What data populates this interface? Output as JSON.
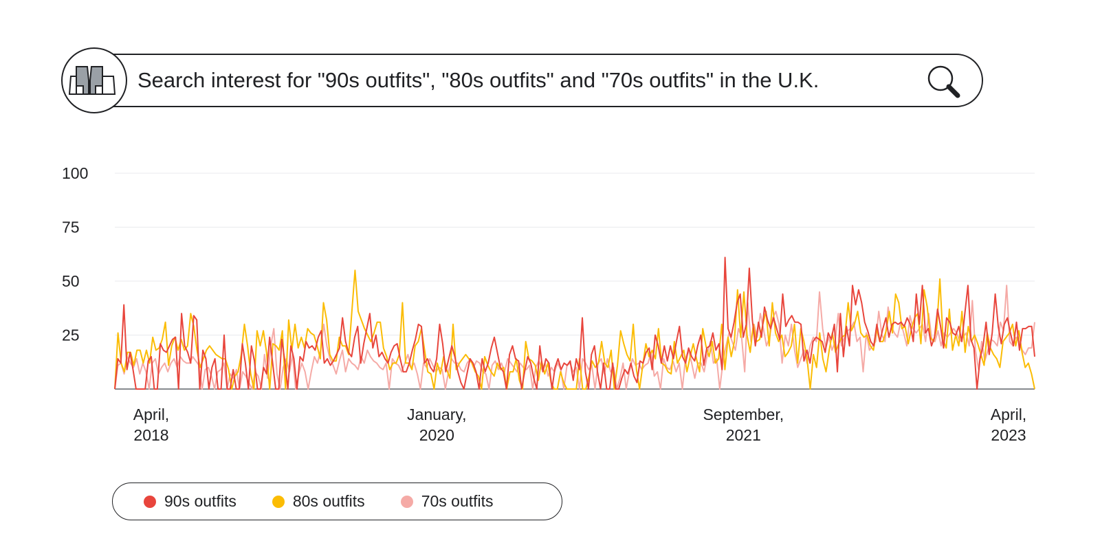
{
  "header": {
    "title": "Search interest for \"90s outfits\", \"80s outfits\" and \"70s outfits\" in the U.K.",
    "logo_icon": "boots-icon",
    "search_icon": "magnifier-icon"
  },
  "colors": {
    "s90": "#e8453c",
    "s80": "#fbbc04",
    "s70": "#f5aaa6",
    "grid": "#e8eaed",
    "axis": "#5f6368"
  },
  "chart_data": {
    "type": "line",
    "title": "Search interest for \"90s outfits\", \"80s outfits\" and \"70s outfits\" in the U.K.",
    "x_start": "2018-04",
    "x_end": "2023-04",
    "ylim": [
      0,
      100
    ],
    "yticks": [
      100,
      75,
      50,
      25
    ],
    "xticks": [
      {
        "label": [
          "April,",
          "2018"
        ],
        "date": "2018-04"
      },
      {
        "label": [
          "January,",
          "2020"
        ],
        "date": "2020-01"
      },
      {
        "label": [
          "September,",
          "2021"
        ],
        "date": "2021-09"
      },
      {
        "label": [
          "April,",
          "2023"
        ],
        "date": "2023-04"
      }
    ],
    "grid": true,
    "legend_position": "bottom-left",
    "series": [
      {
        "name": "90s outfits",
        "values": [
          0,
          14,
          12,
          39,
          9,
          17,
          9,
          0,
          0,
          0,
          0,
          13,
          15,
          0,
          0,
          21,
          18,
          17,
          20,
          23,
          24,
          0,
          35,
          20,
          17,
          12,
          34,
          32,
          0,
          18,
          14,
          0,
          10,
          14,
          0,
          0,
          25,
          0,
          0,
          9,
          0,
          0,
          21,
          12,
          0,
          20,
          13,
          0,
          0,
          10,
          7,
          24,
          12,
          0,
          0,
          23,
          13,
          0,
          20,
          14,
          0,
          15,
          13,
          22,
          19,
          20,
          18,
          24,
          27,
          12,
          14,
          11,
          13,
          16,
          19,
          33,
          22,
          17,
          15,
          24,
          29,
          12,
          21,
          28,
          35,
          19,
          25,
          15,
          17,
          14,
          12,
          17,
          20,
          21,
          14,
          8,
          8,
          12,
          18,
          23,
          30,
          29,
          12,
          14,
          10,
          8,
          14,
          30,
          21,
          8,
          14,
          20,
          15,
          8,
          3,
          0,
          7,
          14,
          12,
          8,
          0,
          14,
          8,
          12,
          19,
          24,
          17,
          10,
          8,
          0,
          16,
          20,
          14,
          13,
          0,
          8,
          15,
          12,
          5,
          0,
          20,
          8,
          14,
          12,
          0,
          10,
          14,
          9,
          12,
          11,
          13,
          4,
          14,
          9,
          33,
          8,
          0,
          16,
          20,
          8,
          0,
          12,
          0,
          0,
          12,
          0,
          0,
          5,
          9,
          7,
          12,
          6,
          3,
          13,
          12,
          17,
          19,
          9,
          25,
          20,
          12,
          20,
          13,
          20,
          14,
          22,
          29,
          15,
          12,
          19,
          15,
          13,
          20,
          25,
          11,
          19,
          20,
          26,
          18,
          21,
          9,
          61,
          28,
          24,
          31,
          40,
          44,
          24,
          30,
          56,
          32,
          20,
          31,
          24,
          38,
          32,
          28,
          33,
          28,
          23,
          44,
          29,
          32,
          34,
          31,
          31,
          30,
          13,
          18,
          12,
          22,
          24,
          23,
          22,
          17,
          26,
          23,
          30,
          8,
          35,
          15,
          29,
          20,
          48,
          39,
          46,
          40,
          31,
          27,
          22,
          20,
          30,
          22,
          28,
          33,
          24,
          30,
          31,
          30,
          31,
          29,
          33,
          30,
          22,
          44,
          30,
          48,
          26,
          28,
          20,
          24,
          37,
          29,
          19,
          33,
          31,
          26,
          25,
          29,
          22,
          35,
          48,
          23,
          19,
          0,
          14,
          20,
          31,
          16,
          26,
          44,
          29,
          21,
          30,
          33,
          26,
          20,
          31,
          18,
          28,
          28,
          29,
          29,
          15
        ]
      },
      {
        "name": "80s outfits",
        "values": [
          0,
          26,
          12,
          8,
          17,
          17,
          11,
          18,
          18,
          12,
          18,
          12,
          24,
          18,
          19,
          23,
          31,
          11,
          20,
          24,
          18,
          23,
          18,
          20,
          35,
          29,
          18,
          10,
          14,
          18,
          20,
          18,
          16,
          15,
          14,
          14,
          9,
          0,
          6,
          8,
          16,
          30,
          20,
          7,
          0,
          27,
          20,
          27,
          17,
          0,
          21,
          20,
          18,
          27,
          0,
          32,
          18,
          30,
          19,
          24,
          19,
          28,
          26,
          25,
          20,
          14,
          40,
          32,
          16,
          13,
          13,
          24,
          20,
          20,
          16,
          36,
          55,
          36,
          32,
          28,
          25,
          22,
          26,
          31,
          31,
          19,
          15,
          9,
          12,
          12,
          16,
          40,
          12,
          12,
          9,
          20,
          22,
          28,
          18,
          8,
          7,
          0,
          12,
          7,
          15,
          9,
          5,
          30,
          9,
          12,
          14,
          16,
          14,
          12,
          8,
          6,
          0,
          15,
          11,
          8,
          6,
          12,
          9,
          10,
          0,
          8,
          8,
          14,
          4,
          0,
          22,
          14,
          13,
          11,
          4,
          13,
          7,
          12,
          3,
          0,
          0,
          8,
          3,
          0,
          0,
          0,
          0,
          14,
          0,
          0,
          6,
          13,
          10,
          12,
          22,
          12,
          10,
          18,
          0,
          11,
          27,
          21,
          16,
          13,
          30,
          9,
          0,
          11,
          21,
          15,
          18,
          14,
          28,
          12,
          11,
          8,
          7,
          22,
          12,
          15,
          18,
          8,
          15,
          21,
          14,
          8,
          28,
          20,
          15,
          22,
          12,
          14,
          30,
          9,
          24,
          15,
          22,
          46,
          24,
          45,
          25,
          17,
          30,
          22,
          23,
          30,
          36,
          20,
          40,
          26,
          22,
          25,
          15,
          17,
          20,
          30,
          12,
          28,
          22,
          14,
          0,
          16,
          10,
          26,
          14,
          8,
          18,
          26,
          17,
          21,
          24,
          25,
          40,
          27,
          30,
          36,
          26,
          24,
          25,
          20,
          18,
          28,
          22,
          22,
          27,
          36,
          26,
          44,
          40,
          28,
          29,
          21,
          28,
          33,
          35,
          21,
          46,
          38,
          24,
          22,
          28,
          51,
          23,
          19,
          37,
          18,
          25,
          20,
          36,
          17,
          29,
          22,
          25,
          21,
          16,
          11,
          26,
          19,
          16,
          14,
          10,
          22,
          24,
          26,
          30,
          20,
          27,
          17,
          10,
          12,
          7,
          0
        ]
      },
      {
        "name": "70s outfits",
        "values": [
          0,
          11,
          12,
          7,
          15,
          12,
          10,
          14,
          7,
          12,
          8,
          0,
          12,
          14,
          7,
          10,
          12,
          8,
          12,
          14,
          10,
          15,
          13,
          12,
          12,
          15,
          13,
          11,
          0,
          9,
          10,
          6,
          0,
          8,
          9,
          12,
          0,
          7,
          5,
          9,
          0,
          8,
          6,
          3,
          0,
          8,
          6,
          0,
          16,
          5,
          20,
          28,
          7,
          0,
          10,
          14,
          8,
          16,
          0,
          7,
          12,
          8,
          0,
          8,
          15,
          12,
          18,
          30,
          20,
          14,
          11,
          7,
          13,
          18,
          8,
          14,
          12,
          11,
          9,
          15,
          12,
          18,
          15,
          13,
          12,
          10,
          9,
          12,
          0,
          14,
          12,
          11,
          8,
          12,
          16,
          10,
          12,
          7,
          0,
          12,
          10,
          14,
          11,
          8,
          10,
          9,
          0,
          8,
          14,
          12,
          12,
          9,
          8,
          12,
          14,
          10,
          13,
          12,
          8,
          7,
          0,
          11,
          13,
          9,
          12,
          8,
          14,
          12,
          10,
          8,
          12,
          10,
          9,
          11,
          0,
          10,
          13,
          9,
          12,
          6,
          10,
          8,
          12,
          9,
          0,
          11,
          12,
          8,
          10,
          0,
          14,
          12,
          9,
          11,
          0,
          12,
          14,
          7,
          14,
          8,
          10,
          0,
          5,
          12,
          0,
          8,
          14,
          11,
          12,
          9,
          11,
          12,
          17,
          6,
          8,
          0,
          14,
          10,
          9,
          13,
          8,
          12,
          0,
          14,
          18,
          12,
          5,
          12,
          12,
          8,
          16,
          22,
          12,
          14,
          0,
          12,
          20,
          26,
          22,
          18,
          28,
          24,
          8,
          40,
          22,
          30,
          24,
          35,
          28,
          20,
          24,
          33,
          36,
          30,
          12,
          25,
          20,
          30,
          18,
          10,
          14,
          18,
          12,
          20,
          24,
          22,
          45,
          28,
          19,
          24,
          18,
          22,
          35,
          20,
          24,
          27,
          28,
          31,
          22,
          24,
          8,
          26,
          18,
          20,
          22,
          36,
          25,
          22,
          38,
          29,
          26,
          24,
          31,
          26,
          20,
          34,
          28,
          26,
          28,
          30,
          22,
          35,
          23,
          22,
          27,
          20,
          26,
          24,
          26,
          28,
          26,
          22,
          24,
          26,
          20,
          41,
          18,
          9,
          22,
          13,
          18,
          23,
          22,
          20,
          31,
          27,
          48,
          22,
          20,
          24,
          22,
          18,
          16,
          19,
          19,
          31
        ]
      }
    ]
  }
}
